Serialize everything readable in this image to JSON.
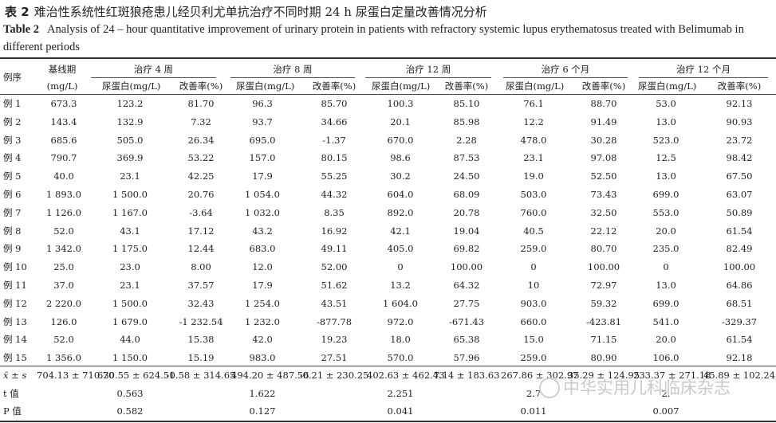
{
  "caption": {
    "zh_label": "表 2",
    "zh_title": "难治性系统性红斑狼疮患儿经贝利尤单抗治疗不同时期 24 h 尿蛋白定量改善情况分析",
    "en_label": "Table 2",
    "en_title": "Analysis of 24 – hour quantitative improvement of urinary protein in patients with refractory systemic lupus erythematosus treated with Belimumab in different periods"
  },
  "header": {
    "case": "例序",
    "baseline_top": "基线期",
    "baseline_unit": "(mg/L)",
    "groups": [
      "治疗 4 周",
      "治疗 8 周",
      "治疗 12 周",
      "治疗 6 个月",
      "治疗 12 个月"
    ],
    "protein": "尿蛋白(mg/L)",
    "rate": "改善率(%)"
  },
  "rows": [
    [
      "例 1",
      "673.3",
      "123.2",
      "81.70",
      "96.3",
      "85.70",
      "100.3",
      "85.10",
      "76.1",
      "88.70",
      "53.0",
      "92.13"
    ],
    [
      "例 2",
      "143.4",
      "132.9",
      "7.32",
      "93.7",
      "34.66",
      "20.1",
      "85.98",
      "12.2",
      "91.49",
      "13.0",
      "90.93"
    ],
    [
      "例 3",
      "685.6",
      "505.0",
      "26.34",
      "695.0",
      "-1.37",
      "670.0",
      "2.28",
      "478.0",
      "30.28",
      "523.0",
      "23.72"
    ],
    [
      "例 4",
      "790.7",
      "369.9",
      "53.22",
      "157.0",
      "80.15",
      "98.6",
      "87.53",
      "23.1",
      "97.08",
      "12.5",
      "98.42"
    ],
    [
      "例 5",
      "40.0",
      "23.1",
      "42.25",
      "17.9",
      "55.25",
      "30.2",
      "24.50",
      "19.0",
      "52.50",
      "13.0",
      "67.50"
    ],
    [
      "例 6",
      "1 893.0",
      "1 500.0",
      "20.76",
      "1 054.0",
      "44.32",
      "604.0",
      "68.09",
      "503.0",
      "73.43",
      "699.0",
      "63.07"
    ],
    [
      "例 7",
      "1 126.0",
      "1 167.0",
      "-3.64",
      "1 032.0",
      "8.35",
      "892.0",
      "20.78",
      "760.0",
      "32.50",
      "553.0",
      "50.89"
    ],
    [
      "例 8",
      "52.0",
      "43.1",
      "17.12",
      "43.2",
      "16.92",
      "42.1",
      "19.04",
      "40.5",
      "22.12",
      "20.0",
      "61.54"
    ],
    [
      "例 9",
      "1 342.0",
      "1 175.0",
      "12.44",
      "683.0",
      "49.11",
      "405.0",
      "69.82",
      "259.0",
      "80.70",
      "235.0",
      "82.49"
    ],
    [
      "例 10",
      "25.0",
      "23.0",
      "8.00",
      "12.0",
      "52.00",
      "0",
      "100.00",
      "0",
      "100.00",
      "0",
      "100.00"
    ],
    [
      "例 11",
      "37.0",
      "23.1",
      "37.57",
      "17.9",
      "51.62",
      "13.2",
      "64.32",
      "10",
      "72.97",
      "13.0",
      "64.86"
    ],
    [
      "例 12",
      "2 220.0",
      "1 500.0",
      "32.43",
      "1 254.0",
      "43.51",
      "1 604.0",
      "27.75",
      "903.0",
      "59.32",
      "699.0",
      "68.51"
    ],
    [
      "例 13",
      "126.0",
      "1 679.0",
      "-1 232.54",
      "1 232.0",
      "-877.78",
      "972.0",
      "-671.43",
      "660.0",
      "-423.81",
      "541.0",
      "-329.37"
    ],
    [
      "例 14",
      "52.0",
      "44.0",
      "15.38",
      "42.0",
      "19.23",
      "18.0",
      "65.38",
      "15.0",
      "71.15",
      "20.0",
      "61.54"
    ],
    [
      "例 15",
      "1 356.0",
      "1 150.0",
      "15.19",
      "983.0",
      "27.51",
      "570.0",
      "57.96",
      "259.0",
      "80.90",
      "106.0",
      "92.18"
    ]
  ],
  "summary": {
    "mean_label": "x̄ ± s",
    "mean_values": [
      "704.13 ± 710.70",
      "630.55 ± 624.51",
      "-0.58 ± 314.65",
      "494.20 ± 487.56",
      "-0.21 ± 230.25",
      "402.63 ± 462.43",
      "7.14 ± 183.63",
      "267.86 ± 302.97",
      "35.29 ± 124.95",
      "233.37 ± 271.18",
      "45.89 ± 102.24"
    ],
    "t_label": "t 值",
    "t_values": [
      "0.563",
      "1.622",
      "2.251",
      "2.7",
      "2."
    ],
    "p_label": "P 值",
    "p_values": [
      "0.582",
      "0.127",
      "0.041",
      "0.011",
      "0.007"
    ]
  },
  "watermark": "中华实用儿科临床杂志"
}
